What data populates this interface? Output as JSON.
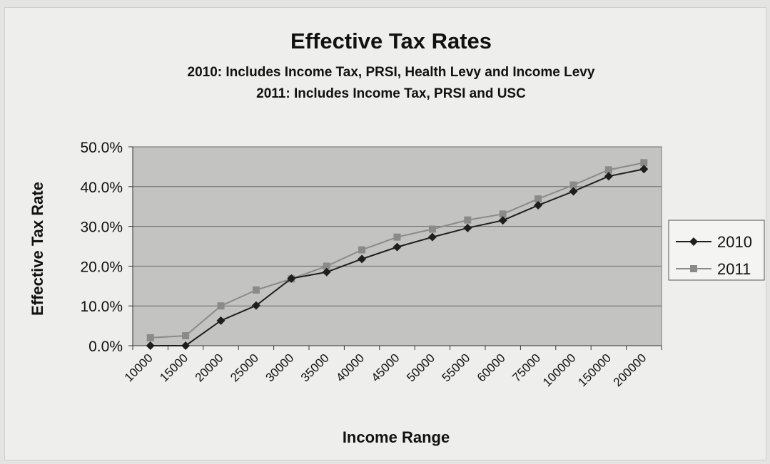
{
  "chart_data": {
    "type": "line",
    "title": "Effective Tax Rates",
    "subtitle_lines": [
      "2010: Includes Income Tax, PRSI, Health Levy and Income Levy",
      "2011: Includes Income Tax, PRSI and USC"
    ],
    "xlabel": "Income Range",
    "ylabel": "Effective Tax Rate",
    "categories": [
      "10000",
      "15000",
      "20000",
      "25000",
      "30000",
      "35000",
      "40000",
      "45000",
      "50000",
      "55000",
      "60000",
      "75000",
      "100000",
      "150000",
      "200000"
    ],
    "y_ticks": [
      "0.0%",
      "10.0%",
      "20.0%",
      "30.0%",
      "40.0%",
      "50.0%"
    ],
    "ylim": [
      0,
      50
    ],
    "grid": true,
    "legend_position": "right",
    "series": [
      {
        "name": "2010",
        "color": "#1e1e1e",
        "marker": "diamond",
        "values": [
          0.0,
          0.0,
          6.3,
          10.1,
          16.9,
          18.5,
          21.8,
          24.8,
          27.3,
          29.6,
          31.5,
          35.3,
          38.8,
          42.6,
          44.4
        ]
      },
      {
        "name": "2011",
        "color": "#8a8a8a",
        "marker": "square",
        "values": [
          2.0,
          2.5,
          10.0,
          14.0,
          16.8,
          20.0,
          24.1,
          27.3,
          29.3,
          31.6,
          33.1,
          36.9,
          40.4,
          44.2,
          46.0
        ]
      }
    ],
    "plot_background": "#c3c3c1"
  }
}
